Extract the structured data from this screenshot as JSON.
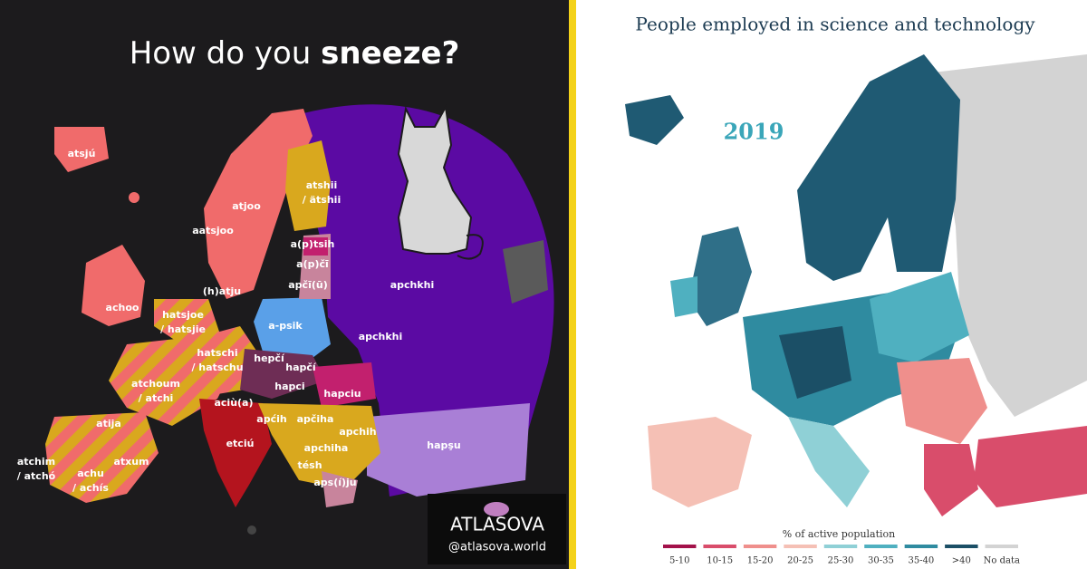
{
  "left": {
    "title": {
      "plain": "How do you ",
      "bold": "sneeze?"
    },
    "labels": [
      [
        "atsjú"
      ],
      [
        "atjoo"
      ],
      [
        "aatsjoo"
      ],
      [
        "atshii",
        "/ ätshii"
      ],
      [
        "a(p)tsih"
      ],
      [
        "a(p)čī"
      ],
      [
        "apčī(ū)"
      ],
      [
        "(h)atju"
      ],
      [
        "achoo"
      ],
      [
        "hatsjoe",
        "/ hatsjie"
      ],
      [
        "a-psik"
      ],
      [
        "apchkhi"
      ],
      [
        "apchkhi"
      ],
      [
        "hatschi",
        "/ hatschu"
      ],
      [
        "hepčí"
      ],
      [
        "hapčí"
      ],
      [
        "atchoum",
        "/ atchi"
      ],
      [
        "hapci"
      ],
      [
        "hapciu"
      ],
      [
        "aciù(a)"
      ],
      [
        "apćih"
      ],
      [
        "apčiha"
      ],
      [
        "apchih"
      ],
      [
        "atija"
      ],
      [
        "etciú"
      ],
      [
        "hapşu"
      ],
      [
        "apchiha"
      ],
      [
        "atchim",
        "/ atchó"
      ],
      [
        "atxum"
      ],
      [
        "achu",
        "/ achís"
      ],
      [
        "tésh"
      ],
      [
        "aps(í)ju"
      ]
    ],
    "brand": "ATLASOVA",
    "handle": "@atlasova.world"
  },
  "right": {
    "title": "People employed in science and technology",
    "year": "2019",
    "legend_title": "% of active population",
    "legend": [
      {
        "label": "5-10",
        "color": "#a3124a"
      },
      {
        "label": "10-15",
        "color": "#d94d6b"
      },
      {
        "label": "15-20",
        "color": "#ef8f8c"
      },
      {
        "label": "20-25",
        "color": "#f5c0b5"
      },
      {
        "label": "25-30",
        "color": "#8fd0d6"
      },
      {
        "label": "30-35",
        "color": "#4fb0c0"
      },
      {
        "label": "35-40",
        "color": "#2f8ba0"
      },
      {
        "label": ">40",
        "color": "#1b4f66"
      },
      {
        "label": "No data",
        "color": "#d3d3d3"
      }
    ]
  }
}
